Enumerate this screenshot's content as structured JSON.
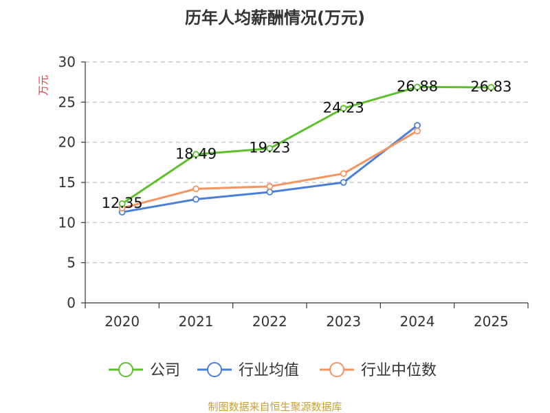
{
  "chart_data": {
    "type": "line",
    "title": "历年人均薪酬情况(万元)",
    "ylabel": "万元",
    "categories": [
      "2020",
      "2021",
      "2022",
      "2023",
      "2024",
      "2025"
    ],
    "ylim": [
      0,
      30
    ],
    "yticks": [
      "0",
      "5",
      "10",
      "15",
      "20",
      "25",
      "30"
    ],
    "grid": true,
    "legend_position": "bottom",
    "series": [
      {
        "name": "公司",
        "color": "#5cc02c",
        "values": [
          12.35,
          18.49,
          19.23,
          24.23,
          26.88,
          26.83
        ],
        "labels": [
          "12.35",
          "18.49",
          "19.23",
          "24.23",
          "26.88",
          "26.83"
        ]
      },
      {
        "name": "行业均值",
        "color": "#4a7fd8",
        "values": [
          11.3,
          12.9,
          13.8,
          15.0,
          22.1,
          null
        ]
      },
      {
        "name": "行业中位数",
        "color": "#f39461",
        "values": [
          11.8,
          14.2,
          14.5,
          16.1,
          21.4,
          null
        ]
      }
    ]
  },
  "source": "制图数据来自恒生聚源数据库"
}
